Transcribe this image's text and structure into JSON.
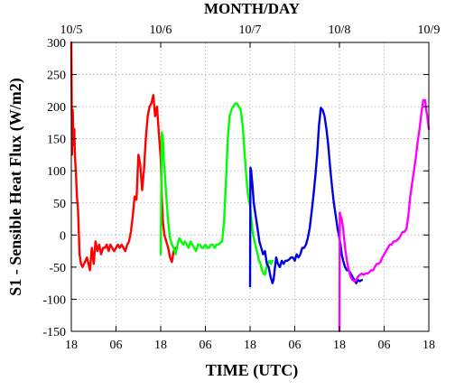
{
  "chart_data": {
    "type": "line",
    "title": "MONTH/DAY",
    "xlabel": "TIME (UTC)",
    "ylabel": "S1 - Sensible Heat Flux (W/m2)",
    "x_unit": "hours UTC",
    "xlim": [
      18,
      114
    ],
    "ylim": [
      -150,
      300
    ],
    "yticks": [
      -150,
      -100,
      -50,
      0,
      50,
      100,
      150,
      200,
      250,
      300
    ],
    "bottom_ticks": [
      {
        "x": 18,
        "label": "18"
      },
      {
        "x": 30,
        "label": "06"
      },
      {
        "x": 42,
        "label": "18"
      },
      {
        "x": 54,
        "label": "06"
      },
      {
        "x": 66,
        "label": "18"
      },
      {
        "x": 78,
        "label": "06"
      },
      {
        "x": 90,
        "label": "18"
      },
      {
        "x": 102,
        "label": "06"
      },
      {
        "x": 114,
        "label": "18"
      }
    ],
    "top_ticks": [
      {
        "x": 18,
        "label": "10/5"
      },
      {
        "x": 42,
        "label": "10/6"
      },
      {
        "x": 66,
        "label": "10/7"
      },
      {
        "x": 90,
        "label": "10/8"
      },
      {
        "x": 114,
        "label": "10/9"
      }
    ],
    "grid": true,
    "series": [
      {
        "color": "#ff0000",
        "x": [
          18.0,
          18.2,
          18.4,
          18.6,
          18.8,
          19.0,
          19.2,
          19.5,
          19.8,
          20.2,
          20.6,
          21.0,
          21.4,
          21.8,
          22.2,
          22.6,
          23.0,
          23.5,
          24.0,
          24.5,
          25.0,
          25.5,
          26.0,
          26.5,
          27.0,
          27.5,
          28.0,
          28.5,
          29.0,
          29.5,
          30.0,
          30.5,
          31.0,
          31.5,
          32.0,
          32.5,
          33.0,
          33.5,
          34.0,
          34.5,
          35.0,
          35.5,
          36.0,
          36.5,
          37.0,
          37.5,
          38.0,
          38.5,
          39.0,
          39.5,
          40.0,
          40.5,
          41.0,
          41.5,
          42.0,
          42.3,
          42.6,
          43.0,
          43.5,
          44.0,
          44.5,
          45.0,
          45.5,
          46.0
        ],
        "values": [
          300,
          125,
          195,
          140,
          165,
          120,
          100,
          60,
          40,
          -30,
          -45,
          -50,
          -45,
          -40,
          -35,
          -45,
          -55,
          -20,
          -45,
          -10,
          -25,
          -15,
          -30,
          -20,
          -20,
          -15,
          -25,
          -15,
          -20,
          -25,
          -20,
          -15,
          -20,
          -15,
          -20,
          -25,
          -15,
          -10,
          5,
          30,
          60,
          55,
          125,
          110,
          70,
          100,
          150,
          185,
          200,
          205,
          218,
          185,
          200,
          160,
          120,
          60,
          20,
          0,
          -10,
          -20,
          -35,
          -42,
          -25,
          -20
        ]
      },
      {
        "color": "#00ff00",
        "x": [
          42.0,
          42.3,
          42.6,
          42.9,
          43.2,
          43.5,
          44.0,
          44.5,
          45.0,
          45.5,
          46.0,
          46.5,
          47.0,
          47.5,
          48.0,
          48.5,
          49.0,
          49.5,
          50.0,
          50.5,
          51.0,
          51.5,
          52.0,
          52.5,
          53.0,
          53.5,
          54.0,
          54.5,
          55.0,
          55.5,
          56.0,
          56.5,
          57.0,
          57.5,
          58.0,
          58.5,
          59.0,
          59.5,
          60.0,
          60.5,
          61.0,
          61.5,
          62.0,
          62.5,
          63.0,
          63.5,
          64.0,
          64.5,
          65.0,
          65.5,
          66.0,
          66.4,
          66.8,
          67.2,
          67.6,
          68.0,
          68.4,
          68.8,
          69.2,
          69.6,
          70.0,
          70.4,
          70.8,
          71.2,
          71.6,
          72.0
        ],
        "values": [
          -30,
          160,
          150,
          110,
          90,
          60,
          20,
          -5,
          -15,
          -20,
          -30,
          -15,
          -5,
          -10,
          -15,
          -10,
          -15,
          -20,
          -10,
          -15,
          -20,
          -25,
          -15,
          -15,
          -20,
          -20,
          -15,
          -20,
          -20,
          -15,
          -15,
          -20,
          -15,
          -15,
          -12,
          -10,
          20,
          80,
          150,
          185,
          195,
          200,
          205,
          205,
          200,
          195,
          170,
          130,
          90,
          60,
          45,
          20,
          0,
          -10,
          -20,
          -30,
          -40,
          -45,
          -55,
          -60,
          -62,
          -50,
          -45,
          -40,
          -45,
          -40
        ]
      },
      {
        "color": "#0000e0",
        "x": [
          66.0,
          66.1,
          66.3,
          66.6,
          67.0,
          67.5,
          68.0,
          68.5,
          69.0,
          69.5,
          70.0,
          70.5,
          71.0,
          71.5,
          72.0,
          72.3,
          72.6,
          73.0,
          73.5,
          74.0,
          74.5,
          75.0,
          75.5,
          76.0,
          76.5,
          77.0,
          77.5,
          78.0,
          78.5,
          79.0,
          79.5,
          80.0,
          80.5,
          81.0,
          81.5,
          82.0,
          82.5,
          83.0,
          83.5,
          84.0,
          84.5,
          85.0,
          85.5,
          86.0,
          86.5,
          87.0,
          87.5,
          88.0,
          88.5,
          89.0,
          89.5,
          90.0,
          90.3,
          90.6,
          91.0,
          91.5,
          92.0,
          92.5,
          93.0,
          93.5,
          94.0,
          94.5,
          95.0,
          95.5,
          96.0
        ],
        "values": [
          -80,
          105,
          100,
          80,
          50,
          30,
          10,
          -10,
          -20,
          -30,
          -25,
          -45,
          -50,
          -65,
          -75,
          -70,
          -55,
          -35,
          -45,
          -50,
          -40,
          -45,
          -40,
          -40,
          -38,
          -35,
          -35,
          -40,
          -30,
          -35,
          -30,
          -20,
          -20,
          -15,
          -5,
          10,
          35,
          60,
          90,
          125,
          170,
          198,
          195,
          185,
          165,
          140,
          105,
          75,
          50,
          30,
          10,
          -5,
          -15,
          -30,
          -40,
          -50,
          -55,
          -55,
          -60,
          -65,
          -70,
          -75,
          -70,
          -72,
          -70
        ]
      },
      {
        "color": "#ff00ff",
        "x": [
          90.0,
          90.1,
          90.3,
          90.6,
          91.0,
          91.5,
          92.0,
          92.5,
          93.0,
          93.5,
          94.0,
          94.5,
          95.0,
          95.5,
          96.0,
          96.5,
          97.0,
          97.5,
          98.0,
          98.5,
          99.0,
          99.5,
          100.0,
          100.5,
          101.0,
          101.5,
          102.0,
          102.5,
          103.0,
          103.5,
          104.0,
          104.5,
          105.0,
          105.5,
          106.0,
          106.5,
          107.0,
          107.5,
          108.0,
          108.5,
          109.0,
          109.5,
          110.0,
          110.5,
          111.0,
          111.5,
          112.0,
          112.5,
          113.0,
          113.3,
          113.6,
          114.0
        ],
        "values": [
          -150,
          35,
          30,
          25,
          10,
          -20,
          -40,
          -55,
          -65,
          -70,
          -72,
          -70,
          -65,
          -62,
          -60,
          -62,
          -60,
          -60,
          -58,
          -55,
          -55,
          -50,
          -45,
          -45,
          -42,
          -35,
          -30,
          -25,
          -20,
          -15,
          -15,
          -10,
          -10,
          -8,
          -5,
          0,
          5,
          5,
          10,
          30,
          60,
          80,
          100,
          120,
          145,
          165,
          190,
          210,
          210,
          195,
          185,
          165
        ]
      }
    ]
  }
}
